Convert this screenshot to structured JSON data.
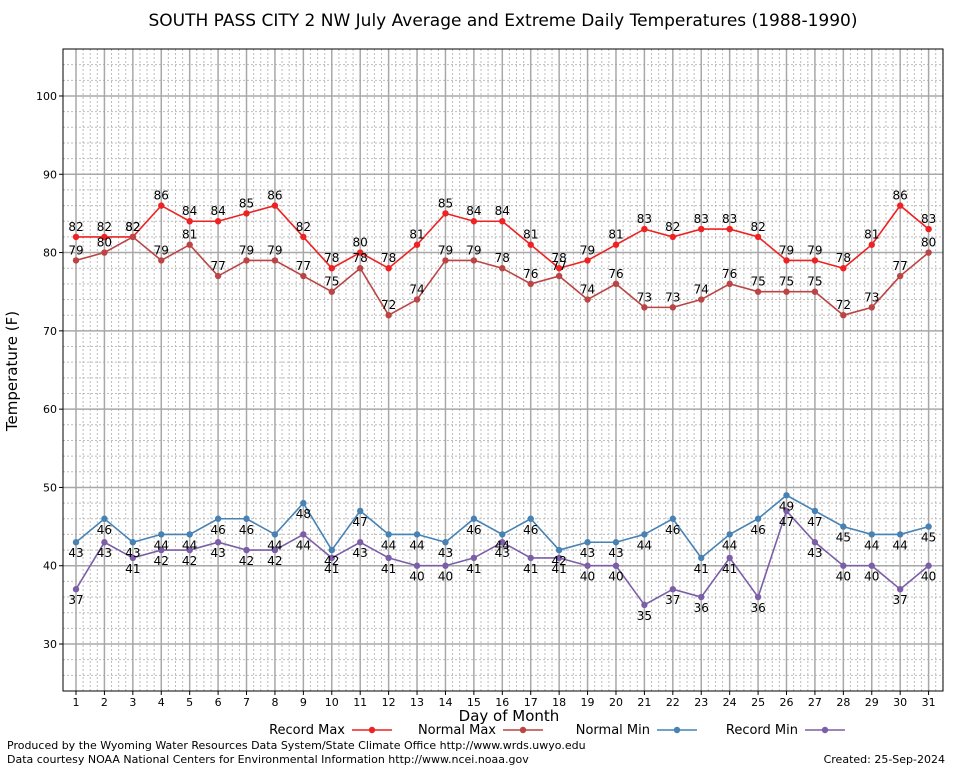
{
  "chart_data": {
    "type": "line",
    "title": "SOUTH PASS CITY 2 NW July Average and Extreme Daily Temperatures (1988-1990)",
    "xlabel": "Day of Month",
    "ylabel": "Temperature (F)",
    "x": [
      1,
      2,
      3,
      4,
      5,
      6,
      7,
      8,
      9,
      10,
      11,
      12,
      13,
      14,
      15,
      16,
      17,
      18,
      19,
      20,
      21,
      22,
      23,
      24,
      25,
      26,
      27,
      28,
      29,
      30,
      31
    ],
    "xlim": [
      0,
      31.5
    ],
    "ylim": [
      24,
      106
    ],
    "yticks": [
      30,
      40,
      50,
      60,
      70,
      80,
      90,
      100
    ],
    "grid": true,
    "legend_position": "bottom",
    "series": [
      {
        "name": "Record Max",
        "color": "#ee2222",
        "values": [
          82,
          82,
          82,
          86,
          84,
          84,
          85,
          86,
          82,
          78,
          80,
          78,
          81,
          85,
          84,
          84,
          81,
          78,
          79,
          81,
          83,
          82,
          83,
          83,
          82,
          79,
          79,
          78,
          81,
          86,
          83
        ]
      },
      {
        "name": "Normal Max",
        "color": "#bb4444",
        "values": [
          79,
          80,
          82,
          79,
          81,
          77,
          79,
          79,
          77,
          75,
          78,
          72,
          74,
          79,
          79,
          78,
          76,
          77,
          74,
          76,
          73,
          73,
          74,
          76,
          75,
          75,
          75,
          72,
          73,
          77,
          80
        ]
      },
      {
        "name": "Normal Min",
        "color": "#4682b4",
        "values": [
          43,
          46,
          43,
          44,
          44,
          46,
          46,
          44,
          48,
          42,
          47,
          44,
          44,
          43,
          46,
          44,
          46,
          42,
          43,
          43,
          44,
          46,
          41,
          44,
          46,
          49,
          47,
          45,
          44,
          44,
          45
        ]
      },
      {
        "name": "Record Min",
        "color": "#7b5ea7",
        "values": [
          37,
          43,
          41,
          42,
          42,
          43,
          42,
          42,
          44,
          41,
          43,
          41,
          40,
          40,
          41,
          43,
          41,
          41,
          40,
          40,
          35,
          37,
          36,
          41,
          36,
          47,
          43,
          40,
          40,
          37,
          40
        ]
      }
    ]
  },
  "footer": {
    "produced_by": "Produced by the Wyoming Water Resources Data System/State Climate Office http://www.wrds.uwyo.edu",
    "courtesy": "Data courtesy NOAA National Centers for Environmental Information http://www.ncei.noaa.gov",
    "created": "Created:  25-Sep-2024"
  }
}
